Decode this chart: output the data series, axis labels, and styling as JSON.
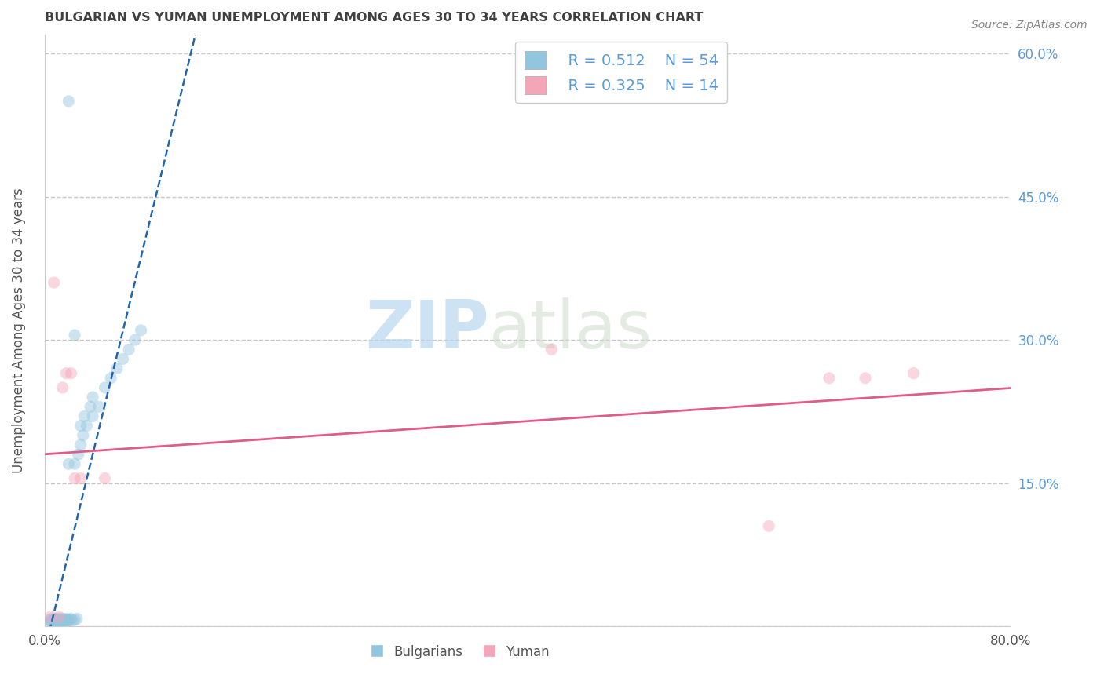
{
  "title": "BULGARIAN VS YUMAN UNEMPLOYMENT AMONG AGES 30 TO 34 YEARS CORRELATION CHART",
  "source": "Source: ZipAtlas.com",
  "ylabel": "Unemployment Among Ages 30 to 34 years",
  "xlim": [
    0.0,
    0.8
  ],
  "ylim": [
    0.0,
    0.62
  ],
  "xticks": [
    0.0,
    0.1,
    0.2,
    0.3,
    0.4,
    0.5,
    0.6,
    0.7,
    0.8
  ],
  "yticks": [
    0.0,
    0.15,
    0.3,
    0.45,
    0.6
  ],
  "xticklabels": [
    "0.0%",
    "",
    "",
    "",
    "",
    "",
    "",
    "",
    "80.0%"
  ],
  "yticklabels_right": [
    "",
    "15.0%",
    "30.0%",
    "45.0%",
    "60.0%"
  ],
  "bulgarian_x": [
    0.005,
    0.005,
    0.006,
    0.006,
    0.007,
    0.007,
    0.008,
    0.008,
    0.009,
    0.009,
    0.01,
    0.01,
    0.01,
    0.01,
    0.012,
    0.012,
    0.013,
    0.013,
    0.014,
    0.015,
    0.015,
    0.015,
    0.016,
    0.017,
    0.018,
    0.018,
    0.019,
    0.02,
    0.02,
    0.02,
    0.022,
    0.023,
    0.025,
    0.025,
    0.027,
    0.028,
    0.03,
    0.03,
    0.032,
    0.033,
    0.035,
    0.038,
    0.04,
    0.04,
    0.045,
    0.05,
    0.055,
    0.06,
    0.065,
    0.07,
    0.075,
    0.08,
    0.02,
    0.025
  ],
  "bulgarian_y": [
    0.005,
    0.007,
    0.005,
    0.008,
    0.005,
    0.007,
    0.005,
    0.008,
    0.005,
    0.006,
    0.005,
    0.006,
    0.007,
    0.008,
    0.005,
    0.007,
    0.005,
    0.008,
    0.006,
    0.005,
    0.007,
    0.008,
    0.006,
    0.007,
    0.005,
    0.008,
    0.006,
    0.005,
    0.007,
    0.17,
    0.008,
    0.006,
    0.007,
    0.17,
    0.008,
    0.18,
    0.19,
    0.21,
    0.2,
    0.22,
    0.21,
    0.23,
    0.22,
    0.24,
    0.23,
    0.25,
    0.26,
    0.27,
    0.28,
    0.29,
    0.3,
    0.31,
    0.55,
    0.305
  ],
  "yuman_x": [
    0.008,
    0.012,
    0.015,
    0.018,
    0.022,
    0.03,
    0.05,
    0.42,
    0.6,
    0.65,
    0.68,
    0.72,
    0.005,
    0.025
  ],
  "yuman_y": [
    0.36,
    0.01,
    0.25,
    0.265,
    0.265,
    0.155,
    0.155,
    0.29,
    0.105,
    0.26,
    0.26,
    0.265,
    0.01,
    0.155
  ],
  "bulgarian_color": "#92c5de",
  "yuman_color": "#f4a5b8",
  "bulgarian_trend_color": "#2166ac",
  "yuman_trend_color": "#e05c8a",
  "legend_r_bulgarian": "R = 0.512",
  "legend_n_bulgarian": "N = 54",
  "legend_r_yuman": "R = 0.325",
  "legend_n_yuman": "N = 14",
  "legend_label_bulgarian": "Bulgarians",
  "legend_label_yuman": "Yuman",
  "watermark_zip": "ZIP",
  "watermark_atlas": "atlas",
  "background_color": "#ffffff",
  "grid_color": "#c8c8c8",
  "title_color": "#404040",
  "tick_color": "#5b9bd5",
  "scatter_size": 120,
  "scatter_alpha": 0.45
}
